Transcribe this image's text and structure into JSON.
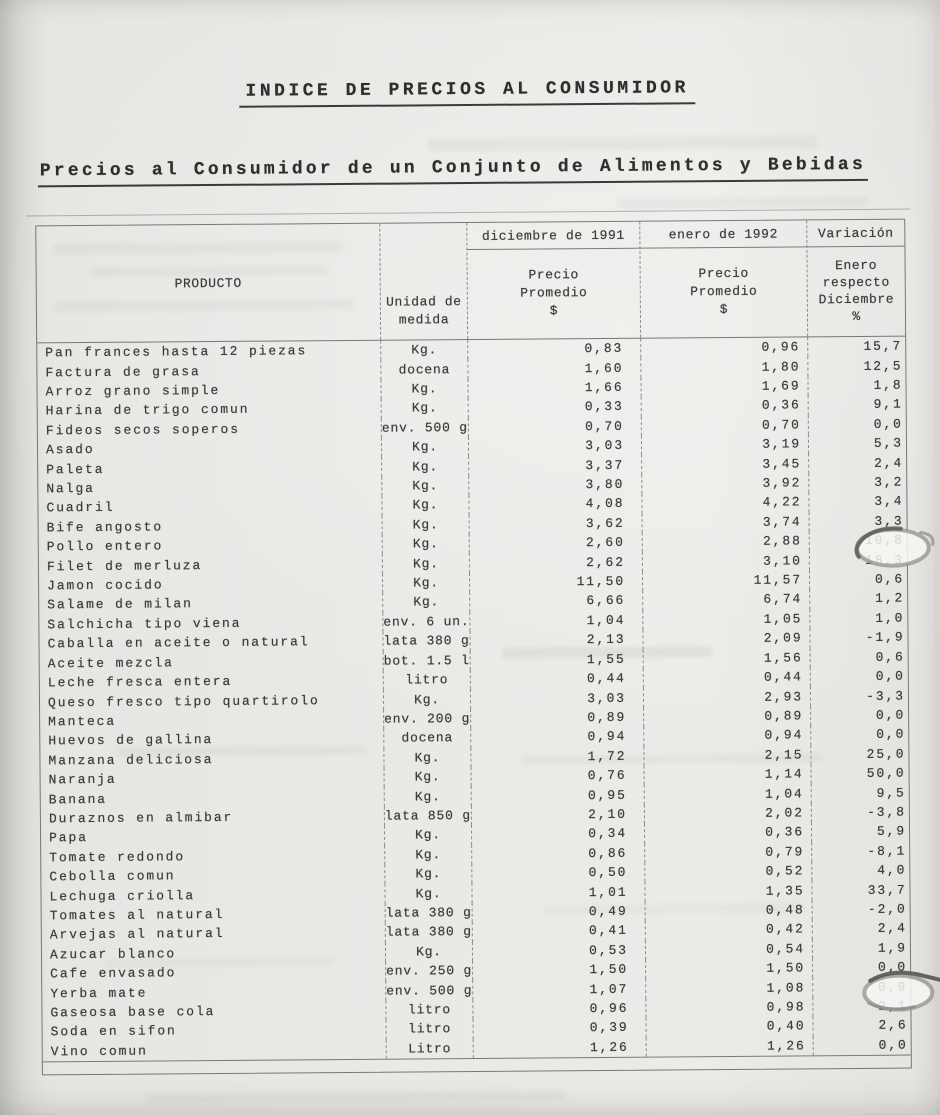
{
  "doc": {
    "title": "INDICE DE PRECIOS AL CONSUMIDOR",
    "subtitle": "Precios al Consumidor de un Conjunto de Alimentos y Bebidas"
  },
  "table": {
    "header": {
      "product": "PRODUCTO",
      "unit_line1": "Unidad de",
      "unit_line2": "medida",
      "period_dec": "diciembre de 1991",
      "period_jan": "enero de 1992",
      "price_line1": "Precio",
      "price_line2": "Promedio",
      "price_line3": "$",
      "var_line1": "Variación",
      "var_line2": "Enero",
      "var_line3": "respecto",
      "var_line4": "Diciembre",
      "var_line5": "%"
    },
    "rows": [
      {
        "product": "Pan frances hasta 12 piezas",
        "unit": "Kg.",
        "dec_price": "0,83",
        "jan_price": "0,96",
        "variation": "15,7"
      },
      {
        "product": "Factura de grasa",
        "unit": "docena",
        "dec_price": "1,60",
        "jan_price": "1,80",
        "variation": "12,5"
      },
      {
        "product": "Arroz grano simple",
        "unit": "Kg.",
        "dec_price": "1,66",
        "jan_price": "1,69",
        "variation": "1,8"
      },
      {
        "product": "Harina de trigo comun",
        "unit": "Kg.",
        "dec_price": "0,33",
        "jan_price": "0,36",
        "variation": "9,1"
      },
      {
        "product": "Fideos secos soperos",
        "unit": "env. 500 g",
        "dec_price": "0,70",
        "jan_price": "0,70",
        "variation": "0,0"
      },
      {
        "product": "Asado",
        "unit": "Kg.",
        "dec_price": "3,03",
        "jan_price": "3,19",
        "variation": "5,3"
      },
      {
        "product": "Paleta",
        "unit": "Kg.",
        "dec_price": "3,37",
        "jan_price": "3,45",
        "variation": "2,4"
      },
      {
        "product": "Nalga",
        "unit": "Kg.",
        "dec_price": "3,80",
        "jan_price": "3,92",
        "variation": "3,2"
      },
      {
        "product": "Cuadril",
        "unit": "Kg.",
        "dec_price": "4,08",
        "jan_price": "4,22",
        "variation": "3,4"
      },
      {
        "product": "Bife angosto",
        "unit": "Kg.",
        "dec_price": "3,62",
        "jan_price": "3,74",
        "variation": "3,3"
      },
      {
        "product": "Pollo entero",
        "unit": "Kg.",
        "dec_price": "2,60",
        "jan_price": "2,88",
        "variation": "10,8"
      },
      {
        "product": "Filet de merluza",
        "unit": "Kg.",
        "dec_price": "2,62",
        "jan_price": "3,10",
        "variation": "18,3"
      },
      {
        "product": "Jamon cocido",
        "unit": "Kg.",
        "dec_price": "11,50",
        "jan_price": "11,57",
        "variation": "0,6"
      },
      {
        "product": "Salame de milan",
        "unit": "Kg.",
        "dec_price": "6,66",
        "jan_price": "6,74",
        "variation": "1,2"
      },
      {
        "product": "Salchicha tipo viena",
        "unit": "env. 6 un.",
        "dec_price": "1,04",
        "jan_price": "1,05",
        "variation": "1,0"
      },
      {
        "product": "Caballa en aceite o natural",
        "unit": "lata 380 g",
        "dec_price": "2,13",
        "jan_price": "2,09",
        "variation": "-1,9"
      },
      {
        "product": "Aceite mezcla",
        "unit": "bot. 1.5 l",
        "dec_price": "1,55",
        "jan_price": "1,56",
        "variation": "0,6"
      },
      {
        "product": "Leche fresca entera",
        "unit": "litro",
        "dec_price": "0,44",
        "jan_price": "0,44",
        "variation": "0,0"
      },
      {
        "product": "Queso fresco tipo quartirolo",
        "unit": "Kg.",
        "dec_price": "3,03",
        "jan_price": "2,93",
        "variation": "-3,3"
      },
      {
        "product": "Manteca",
        "unit": "env. 200 g",
        "dec_price": "0,89",
        "jan_price": "0,89",
        "variation": "0,0"
      },
      {
        "product": "Huevos de gallina",
        "unit": "docena",
        "dec_price": "0,94",
        "jan_price": "0,94",
        "variation": "0,0"
      },
      {
        "product": "Manzana deliciosa",
        "unit": "Kg.",
        "dec_price": "1,72",
        "jan_price": "2,15",
        "variation": "25,0"
      },
      {
        "product": "Naranja",
        "unit": "Kg.",
        "dec_price": "0,76",
        "jan_price": "1,14",
        "variation": "50,0"
      },
      {
        "product": "Banana",
        "unit": "Kg.",
        "dec_price": "0,95",
        "jan_price": "1,04",
        "variation": "9,5"
      },
      {
        "product": "Duraznos en almibar",
        "unit": "lata 850 g",
        "dec_price": "2,10",
        "jan_price": "2,02",
        "variation": "-3,8"
      },
      {
        "product": "Papa",
        "unit": "Kg.",
        "dec_price": "0,34",
        "jan_price": "0,36",
        "variation": "5,9"
      },
      {
        "product": "Tomate redondo",
        "unit": "Kg.",
        "dec_price": "0,86",
        "jan_price": "0,79",
        "variation": "-8,1"
      },
      {
        "product": "Cebolla comun",
        "unit": "Kg.",
        "dec_price": "0,50",
        "jan_price": "0,52",
        "variation": "4,0"
      },
      {
        "product": "Lechuga criolla",
        "unit": "Kg.",
        "dec_price": "1,01",
        "jan_price": "1,35",
        "variation": "33,7"
      },
      {
        "product": "Tomates al natural",
        "unit": "lata 380 g",
        "dec_price": "0,49",
        "jan_price": "0,48",
        "variation": "-2,0"
      },
      {
        "product": "Arvejas al natural",
        "unit": "lata 380 g",
        "dec_price": "0,41",
        "jan_price": "0,42",
        "variation": "2,4"
      },
      {
        "product": "Azucar blanco",
        "unit": "Kg.",
        "dec_price": "0,53",
        "jan_price": "0,54",
        "variation": "1,9"
      },
      {
        "product": "Cafe envasado",
        "unit": "env. 250 g",
        "dec_price": "1,50",
        "jan_price": "1,50",
        "variation": "0,0"
      },
      {
        "product": "Yerba mate",
        "unit": "env. 500 g",
        "dec_price": "1,07",
        "jan_price": "1,08",
        "variation": "0,9"
      },
      {
        "product": "Gaseosa base cola",
        "unit": "litro",
        "dec_price": "0,96",
        "jan_price": "0,98",
        "variation": "2,1"
      },
      {
        "product": "Soda en sifon",
        "unit": "litro",
        "dec_price": "0,39",
        "jan_price": "0,40",
        "variation": "2,6"
      },
      {
        "product": "Vino comun",
        "unit": "Litro",
        "dec_price": "1,26",
        "jan_price": "1,26",
        "variation": "0,0"
      }
    ]
  },
  "colors": {
    "paper": "#e8e7e4",
    "ink": "#3b3b3b",
    "table_line": "#7a7a7a"
  }
}
